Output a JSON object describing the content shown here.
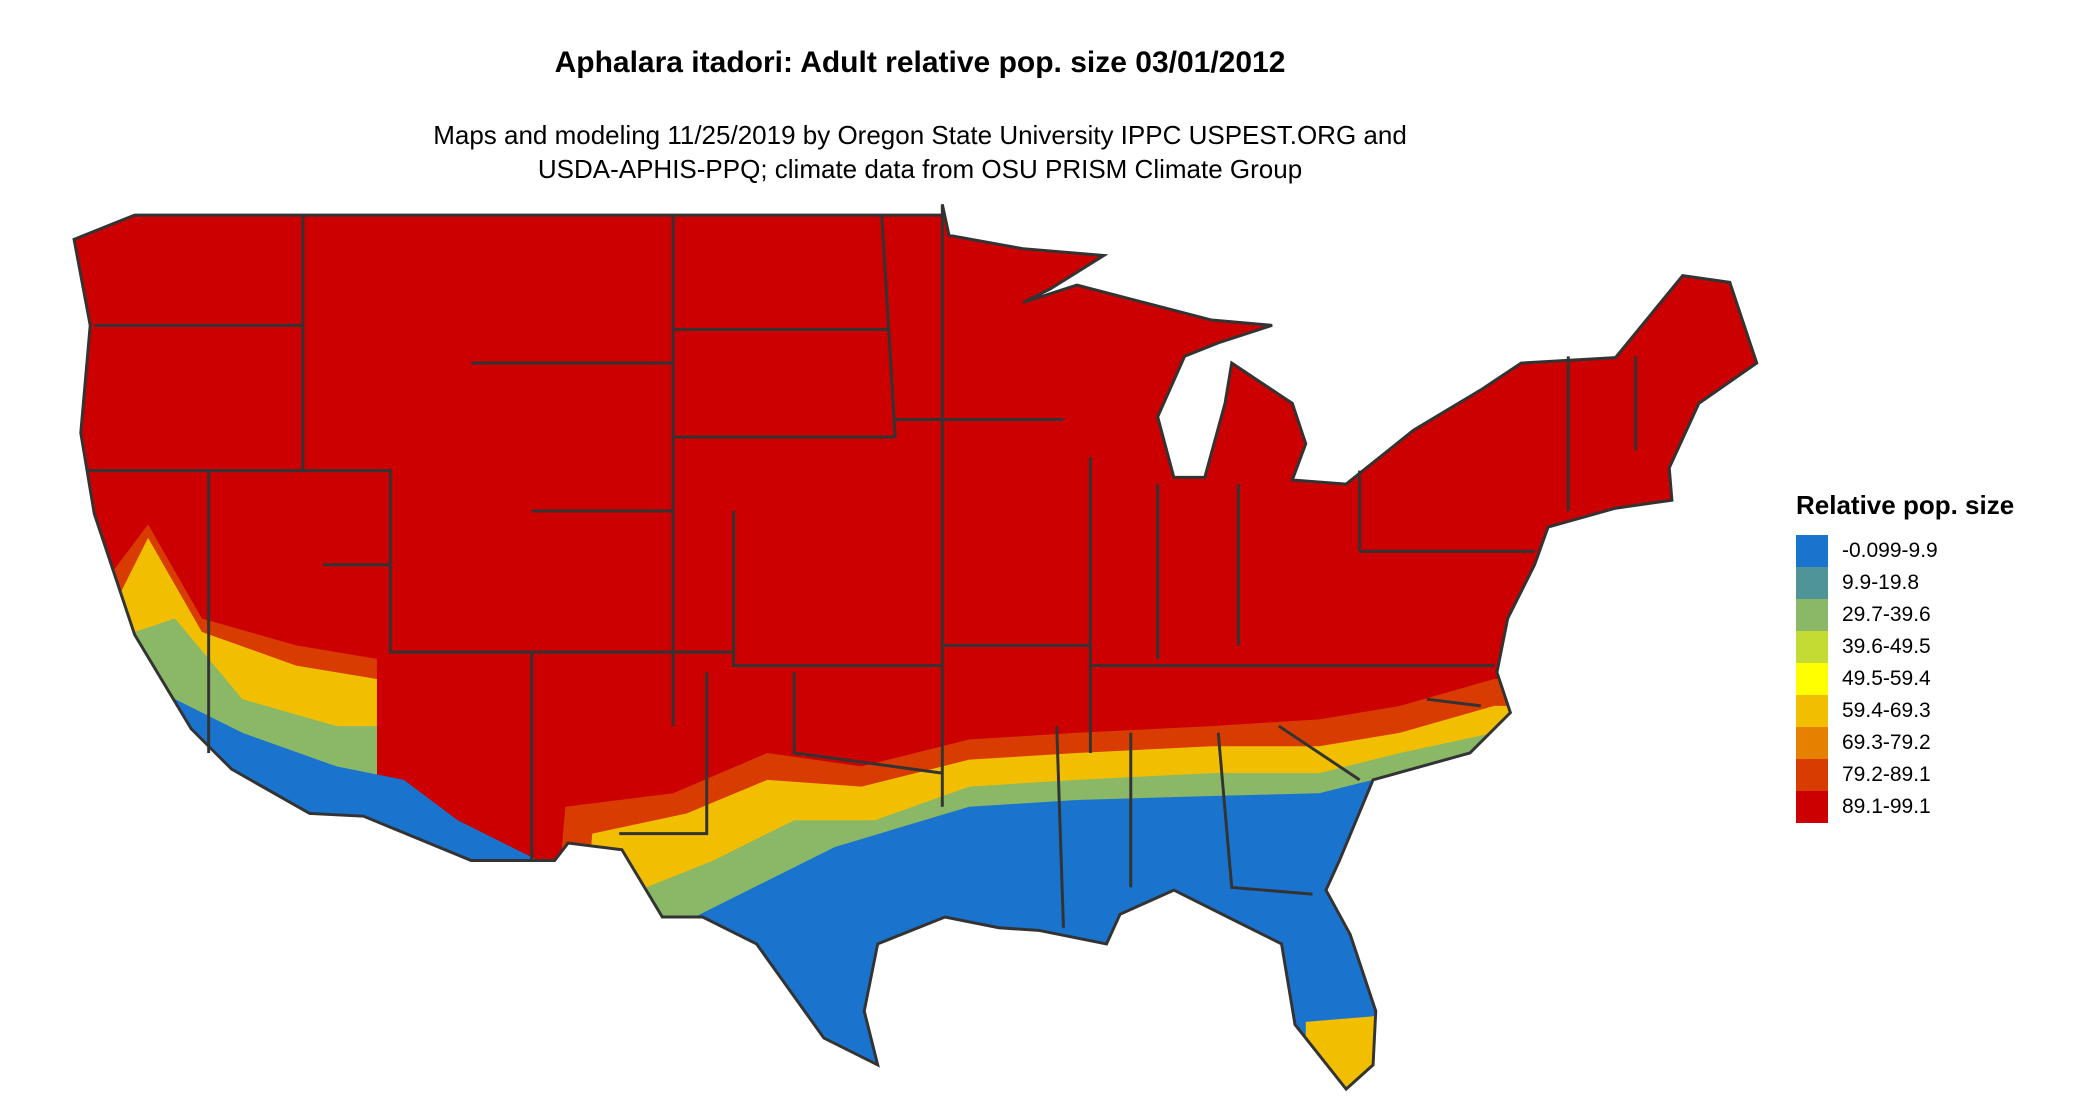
{
  "title": "Aphalara itadori: Adult relative pop. size 03/01/2012",
  "subtitle_line1": "Maps and modeling 11/25/2019 by Oregon State University IPPC USPEST.ORG and",
  "subtitle_line2": "USDA-APHIS-PPQ; climate data from OSU PRISM Climate Group",
  "legend": {
    "title": "Relative pop. size",
    "items": [
      {
        "label": "-0.099-9.9",
        "color": "#1a73cc"
      },
      {
        "label": "9.9-19.8",
        "color": "#4f9498"
      },
      {
        "label": "29.7-39.6",
        "color": "#8ab867"
      },
      {
        "label": "39.6-49.5",
        "color": "#c3db32"
      },
      {
        "label": "49.5-59.4",
        "color": "#ffff00"
      },
      {
        "label": "59.4-69.3",
        "color": "#f2bf00"
      },
      {
        "label": "69.3-79.2",
        "color": "#e68000"
      },
      {
        "label": "79.2-89.1",
        "color": "#d83c00"
      },
      {
        "label": "89.1-99.1",
        "color": "#cc0000"
      }
    ]
  },
  "map": {
    "region": "contiguous United States",
    "border_color": "#333333",
    "dominant_class": "89.1-99.1",
    "southern_class": "-0.099-9.9"
  }
}
